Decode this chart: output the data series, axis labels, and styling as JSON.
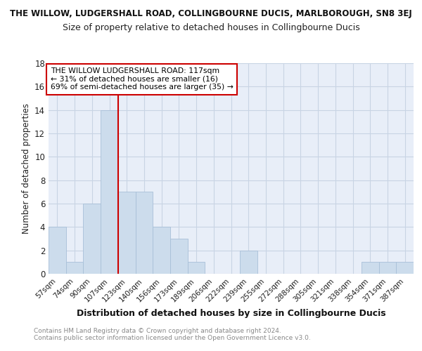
{
  "title_top": "THE WILLOW, LUDGERSHALL ROAD, COLLINGBOURNE DUCIS, MARLBOROUGH, SN8 3EJ",
  "title_main": "Size of property relative to detached houses in Collingbourne Ducis",
  "xlabel": "Distribution of detached houses by size in Collingbourne Ducis",
  "ylabel": "Number of detached properties",
  "footer_line1": "Contains HM Land Registry data © Crown copyright and database right 2024.",
  "footer_line2": "Contains public sector information licensed under the Open Government Licence v3.0.",
  "bin_labels": [
    "57sqm",
    "74sqm",
    "90sqm",
    "107sqm",
    "123sqm",
    "140sqm",
    "156sqm",
    "173sqm",
    "189sqm",
    "206sqm",
    "222sqm",
    "239sqm",
    "255sqm",
    "272sqm",
    "288sqm",
    "305sqm",
    "321sqm",
    "338sqm",
    "354sqm",
    "371sqm",
    "387sqm"
  ],
  "bar_heights": [
    4,
    1,
    6,
    14,
    7,
    7,
    4,
    3,
    1,
    0,
    0,
    2,
    0,
    0,
    0,
    0,
    0,
    0,
    1,
    1,
    1
  ],
  "bar_color": "#ccdcec",
  "bar_edge_color": "#a8c0d8",
  "grid_color": "#c8d4e4",
  "reference_line_color": "#cc0000",
  "ylim": [
    0,
    18
  ],
  "yticks": [
    0,
    2,
    4,
    6,
    8,
    10,
    12,
    14,
    16,
    18
  ],
  "annotation_title": "THE WILLOW LUDGERSHALL ROAD: 117sqm",
  "annotation_line1": "← 31% of detached houses are smaller (16)",
  "annotation_line2": "69% of semi-detached houses are larger (35) →",
  "annotation_box_color": "#ffffff",
  "annotation_box_edge": "#cc0000",
  "plot_bg_color": "#e8eef8",
  "fig_bg_color": "#ffffff"
}
